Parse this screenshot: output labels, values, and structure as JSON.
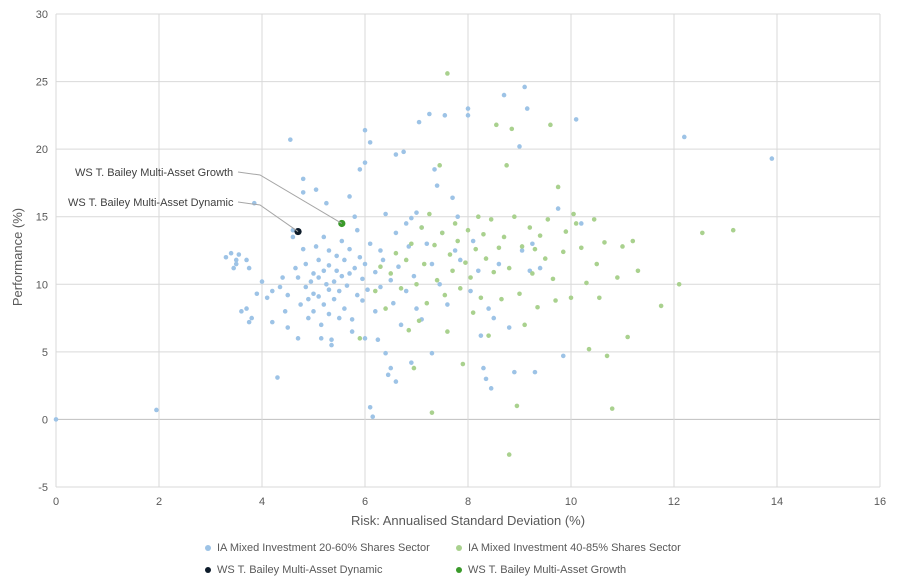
{
  "chart_data": {
    "type": "scatter",
    "xlabel": "Risk: Annualised Standard Deviation (%)",
    "ylabel": "Performance (%)",
    "xlim": [
      0,
      16
    ],
    "ylim": [
      -5,
      30
    ],
    "x_ticks": [
      0,
      2,
      4,
      6,
      8,
      10,
      12,
      14,
      16
    ],
    "y_ticks": [
      -5,
      0,
      5,
      10,
      15,
      20,
      25,
      30
    ],
    "grid": true,
    "legend_position": "bottom",
    "series": [
      {
        "name": "IA Mixed Investment 20-60% Shares Sector",
        "color": "#9dc3e6",
        "points": [
          [
            0.0,
            0.0
          ],
          [
            1.95,
            0.7
          ],
          [
            3.3,
            12.0
          ],
          [
            3.4,
            12.3
          ],
          [
            3.5,
            11.8
          ],
          [
            3.55,
            12.2
          ],
          [
            3.5,
            11.5
          ],
          [
            3.45,
            11.2
          ],
          [
            3.7,
            11.8
          ],
          [
            3.75,
            11.2
          ],
          [
            3.7,
            8.2
          ],
          [
            3.6,
            8.0
          ],
          [
            3.8,
            7.5
          ],
          [
            3.75,
            7.2
          ],
          [
            3.9,
            9.3
          ],
          [
            3.85,
            16.0
          ],
          [
            4.0,
            10.2
          ],
          [
            4.1,
            9.0
          ],
          [
            4.2,
            9.5
          ],
          [
            4.2,
            7.2
          ],
          [
            4.3,
            3.1
          ],
          [
            4.35,
            9.8
          ],
          [
            4.4,
            10.5
          ],
          [
            4.45,
            8.0
          ],
          [
            4.5,
            9.2
          ],
          [
            4.5,
            6.8
          ],
          [
            4.55,
            20.7
          ],
          [
            4.6,
            14.0
          ],
          [
            4.6,
            13.5
          ],
          [
            4.65,
            11.2
          ],
          [
            4.7,
            10.5
          ],
          [
            4.7,
            6.0
          ],
          [
            4.75,
            8.5
          ],
          [
            4.8,
            17.8
          ],
          [
            4.8,
            16.8
          ],
          [
            4.8,
            12.6
          ],
          [
            4.85,
            11.5
          ],
          [
            4.85,
            9.8
          ],
          [
            4.9,
            8.9
          ],
          [
            4.9,
            7.5
          ],
          [
            4.95,
            10.2
          ],
          [
            5.0,
            10.8
          ],
          [
            5.0,
            9.3
          ],
          [
            5.0,
            8.0
          ],
          [
            5.05,
            17.0
          ],
          [
            5.05,
            12.8
          ],
          [
            5.1,
            11.8
          ],
          [
            5.1,
            10.5
          ],
          [
            5.1,
            9.1
          ],
          [
            5.15,
            7.0
          ],
          [
            5.15,
            6.0
          ],
          [
            5.2,
            13.5
          ],
          [
            5.2,
            11.0
          ],
          [
            5.2,
            8.5
          ],
          [
            5.25,
            10.0
          ],
          [
            5.25,
            16.0
          ],
          [
            5.3,
            12.5
          ],
          [
            5.3,
            11.4
          ],
          [
            5.3,
            9.6
          ],
          [
            5.3,
            7.8
          ],
          [
            5.35,
            5.9
          ],
          [
            5.35,
            5.5
          ],
          [
            5.4,
            10.2
          ],
          [
            5.4,
            8.9
          ],
          [
            5.45,
            12.1
          ],
          [
            5.45,
            11.0
          ],
          [
            5.5,
            9.5
          ],
          [
            5.5,
            7.5
          ],
          [
            5.55,
            13.2
          ],
          [
            5.55,
            10.6
          ],
          [
            5.6,
            11.8
          ],
          [
            5.6,
            8.2
          ],
          [
            5.65,
            9.9
          ],
          [
            5.7,
            12.6
          ],
          [
            5.7,
            16.5
          ],
          [
            5.7,
            10.8
          ],
          [
            5.75,
            7.4
          ],
          [
            5.75,
            6.5
          ],
          [
            5.8,
            15.0
          ],
          [
            5.8,
            11.2
          ],
          [
            5.85,
            9.2
          ],
          [
            5.85,
            14.0
          ],
          [
            5.9,
            12.0
          ],
          [
            5.9,
            18.5
          ],
          [
            5.95,
            10.4
          ],
          [
            5.95,
            8.8
          ],
          [
            6.0,
            21.4
          ],
          [
            6.0,
            19.0
          ],
          [
            6.0,
            11.5
          ],
          [
            6.0,
            6.0
          ],
          [
            6.05,
            9.6
          ],
          [
            6.1,
            20.5
          ],
          [
            6.1,
            13.0
          ],
          [
            6.1,
            0.9
          ],
          [
            6.15,
            0.2
          ],
          [
            6.2,
            10.9
          ],
          [
            6.2,
            8.0
          ],
          [
            6.25,
            5.9
          ],
          [
            6.3,
            12.5
          ],
          [
            6.3,
            9.8
          ],
          [
            6.35,
            11.8
          ],
          [
            6.4,
            15.2
          ],
          [
            6.4,
            4.9
          ],
          [
            6.45,
            3.3
          ],
          [
            6.5,
            3.8
          ],
          [
            6.5,
            10.3
          ],
          [
            6.55,
            8.6
          ],
          [
            6.6,
            19.6
          ],
          [
            6.6,
            13.8
          ],
          [
            6.6,
            2.8
          ],
          [
            6.65,
            11.3
          ],
          [
            6.7,
            7.0
          ],
          [
            6.75,
            19.8
          ],
          [
            6.8,
            9.5
          ],
          [
            6.8,
            14.5
          ],
          [
            6.85,
            12.8
          ],
          [
            6.9,
            14.9
          ],
          [
            6.9,
            4.2
          ],
          [
            6.95,
            10.6
          ],
          [
            7.0,
            15.3
          ],
          [
            7.0,
            8.2
          ],
          [
            7.05,
            22.0
          ],
          [
            7.1,
            14.2
          ],
          [
            7.1,
            7.4
          ],
          [
            7.2,
            13.0
          ],
          [
            7.25,
            22.6
          ],
          [
            7.3,
            11.5
          ],
          [
            7.3,
            4.9
          ],
          [
            7.35,
            18.5
          ],
          [
            7.4,
            17.3
          ],
          [
            7.45,
            10.0
          ],
          [
            7.5,
            13.8
          ],
          [
            7.55,
            22.5
          ],
          [
            7.6,
            8.5
          ],
          [
            7.7,
            16.4
          ],
          [
            7.75,
            12.5
          ],
          [
            7.8,
            15.0
          ],
          [
            7.85,
            11.8
          ],
          [
            8.0,
            23.0
          ],
          [
            8.0,
            22.5
          ],
          [
            8.05,
            9.5
          ],
          [
            8.1,
            13.2
          ],
          [
            8.2,
            11.0
          ],
          [
            8.25,
            6.2
          ],
          [
            8.3,
            3.8
          ],
          [
            8.35,
            3.0
          ],
          [
            8.4,
            8.2
          ],
          [
            8.45,
            2.3
          ],
          [
            8.5,
            7.5
          ],
          [
            8.6,
            11.5
          ],
          [
            8.7,
            24.0
          ],
          [
            8.8,
            6.8
          ],
          [
            8.9,
            3.5
          ],
          [
            9.0,
            20.2
          ],
          [
            9.05,
            12.5
          ],
          [
            9.1,
            24.6
          ],
          [
            9.15,
            23.0
          ],
          [
            9.2,
            11.0
          ],
          [
            9.25,
            13.0
          ],
          [
            9.3,
            3.5
          ],
          [
            9.4,
            11.2
          ],
          [
            9.75,
            15.6
          ],
          [
            9.85,
            4.7
          ],
          [
            10.1,
            22.2
          ],
          [
            10.2,
            14.5
          ],
          [
            12.2,
            20.9
          ],
          [
            13.9,
            19.3
          ]
        ]
      },
      {
        "name": "IA Mixed Investment 40-85% Shares Sector",
        "color": "#a9d18e",
        "points": [
          [
            5.9,
            6.0
          ],
          [
            6.2,
            9.5
          ],
          [
            6.3,
            11.3
          ],
          [
            6.4,
            8.2
          ],
          [
            6.5,
            10.8
          ],
          [
            6.6,
            12.3
          ],
          [
            6.7,
            9.7
          ],
          [
            6.8,
            11.8
          ],
          [
            6.85,
            6.6
          ],
          [
            6.9,
            13.0
          ],
          [
            6.95,
            3.8
          ],
          [
            7.0,
            10.0
          ],
          [
            7.05,
            7.3
          ],
          [
            7.1,
            14.2
          ],
          [
            7.15,
            11.5
          ],
          [
            7.2,
            8.6
          ],
          [
            7.25,
            15.2
          ],
          [
            7.3,
            0.5
          ],
          [
            7.35,
            12.9
          ],
          [
            7.4,
            10.3
          ],
          [
            7.45,
            18.8
          ],
          [
            7.5,
            13.8
          ],
          [
            7.55,
            9.2
          ],
          [
            7.6,
            25.6
          ],
          [
            7.6,
            6.5
          ],
          [
            7.65,
            12.2
          ],
          [
            7.7,
            11.0
          ],
          [
            7.75,
            14.5
          ],
          [
            7.8,
            13.2
          ],
          [
            7.85,
            9.7
          ],
          [
            7.9,
            4.1
          ],
          [
            7.95,
            11.6
          ],
          [
            8.0,
            14.0
          ],
          [
            8.05,
            10.5
          ],
          [
            8.1,
            7.9
          ],
          [
            8.15,
            12.6
          ],
          [
            8.2,
            15.0
          ],
          [
            8.25,
            9.0
          ],
          [
            8.3,
            13.7
          ],
          [
            8.35,
            11.9
          ],
          [
            8.4,
            6.2
          ],
          [
            8.45,
            14.8
          ],
          [
            8.5,
            10.9
          ],
          [
            8.55,
            21.8
          ],
          [
            8.6,
            12.7
          ],
          [
            8.65,
            8.9
          ],
          [
            8.7,
            13.5
          ],
          [
            8.75,
            18.8
          ],
          [
            8.8,
            -2.6
          ],
          [
            8.8,
            11.2
          ],
          [
            8.85,
            21.5
          ],
          [
            8.9,
            15.0
          ],
          [
            8.95,
            1.0
          ],
          [
            9.0,
            9.3
          ],
          [
            9.05,
            12.8
          ],
          [
            9.1,
            7.0
          ],
          [
            9.2,
            14.2
          ],
          [
            9.25,
            10.8
          ],
          [
            9.3,
            12.6
          ],
          [
            9.35,
            8.3
          ],
          [
            9.4,
            13.6
          ],
          [
            9.5,
            11.9
          ],
          [
            9.55,
            14.8
          ],
          [
            9.6,
            21.8
          ],
          [
            9.65,
            10.4
          ],
          [
            9.7,
            8.8
          ],
          [
            9.75,
            17.2
          ],
          [
            9.85,
            12.4
          ],
          [
            9.9,
            13.9
          ],
          [
            10.0,
            9.0
          ],
          [
            10.05,
            15.2
          ],
          [
            10.1,
            14.5
          ],
          [
            10.2,
            12.7
          ],
          [
            10.3,
            10.1
          ],
          [
            10.35,
            5.2
          ],
          [
            10.45,
            14.8
          ],
          [
            10.5,
            11.5
          ],
          [
            10.55,
            9.0
          ],
          [
            10.65,
            13.1
          ],
          [
            10.7,
            4.7
          ],
          [
            10.8,
            0.8
          ],
          [
            10.9,
            10.5
          ],
          [
            11.0,
            12.8
          ],
          [
            11.1,
            6.1
          ],
          [
            11.2,
            13.2
          ],
          [
            11.3,
            11.0
          ],
          [
            11.75,
            8.4
          ],
          [
            12.1,
            10.0
          ],
          [
            12.55,
            13.8
          ],
          [
            13.15,
            14.0
          ]
        ]
      },
      {
        "name": "WS T. Bailey Multi-Asset Dynamic",
        "color": "#0d1b2a",
        "points": [
          [
            4.7,
            13.9
          ]
        ]
      },
      {
        "name": "WS T. Bailey Multi-Asset Growth",
        "color": "#3a9a2a",
        "points": [
          [
            5.55,
            14.5
          ]
        ]
      }
    ],
    "annotations": [
      {
        "text": "WS T. Bailey Multi-Asset Growth",
        "target": [
          5.55,
          14.5
        ]
      },
      {
        "text": "WS T. Bailey Multi-Asset Dynamic",
        "target": [
          4.7,
          13.9
        ]
      }
    ]
  }
}
